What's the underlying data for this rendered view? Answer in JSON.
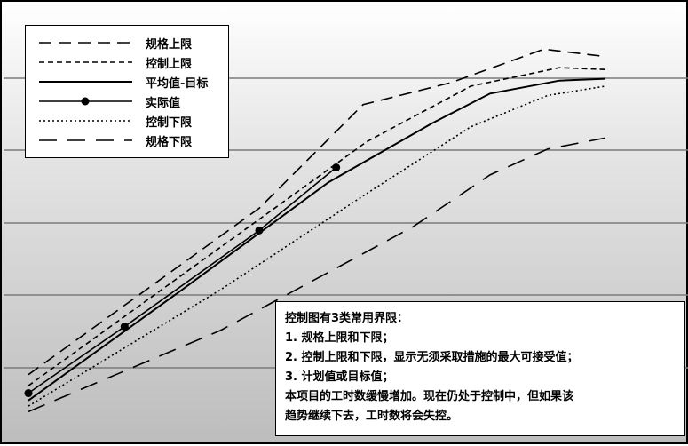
{
  "chart_data": {
    "type": "line",
    "title": "",
    "xlabel": "",
    "ylabel": "",
    "grid": true,
    "legend_position": "top-left",
    "series": [
      {
        "name": "规格上限",
        "style": "long-dash",
        "points": [
          [
            0,
            0.9
          ],
          [
            6,
            5.4
          ],
          [
            8.7,
            8.2
          ],
          [
            11,
            8.8
          ],
          [
            13.4,
            9.7
          ],
          [
            15,
            9.5
          ]
        ]
      },
      {
        "name": "控制上限",
        "style": "short-dash",
        "points": [
          [
            0,
            0.6
          ],
          [
            4.8,
            4.2
          ],
          [
            8.8,
            7.2
          ],
          [
            11.5,
            8.7
          ],
          [
            13.8,
            9.2
          ],
          [
            15,
            9.15
          ]
        ]
      },
      {
        "name": "平均值-目标",
        "style": "solid",
        "points": [
          [
            0,
            0.2
          ],
          [
            4,
            3.2
          ],
          [
            7.8,
            6.1
          ],
          [
            10.5,
            7.7
          ],
          [
            12,
            8.5
          ],
          [
            13.8,
            8.85
          ],
          [
            15,
            8.9
          ]
        ]
      },
      {
        "name": "实际值",
        "style": "solid-marker",
        "points": [
          [
            0,
            0.4
          ],
          [
            2.5,
            2.2
          ],
          [
            6,
            4.8
          ],
          [
            8,
            6.5
          ]
        ]
      },
      {
        "name": "控制下限",
        "style": "dotted",
        "points": [
          [
            0,
            0.05
          ],
          [
            5,
            3.2
          ],
          [
            8.8,
            5.8
          ],
          [
            11.5,
            7.6
          ],
          [
            13.5,
            8.45
          ],
          [
            15,
            8.7
          ]
        ]
      },
      {
        "name": "规格下限",
        "style": "long-dash-gap",
        "points": [
          [
            0,
            -0.1
          ],
          [
            5,
            2.1
          ],
          [
            10,
            4.9
          ],
          [
            12,
            6.3
          ],
          [
            13.5,
            7
          ],
          [
            15,
            7.3
          ]
        ]
      }
    ],
    "xlim": [
      0,
      15
    ],
    "ylim": [
      -0.5,
      10.5
    ]
  },
  "legend": [
    {
      "label": "规格上限",
      "style": "long-dash"
    },
    {
      "label": "控制上限",
      "style": "short-dash"
    },
    {
      "label": "平均值-目标",
      "style": "solid"
    },
    {
      "label": "实际值",
      "style": "solid-marker"
    },
    {
      "label": "控制下限",
      "style": "dotted"
    },
    {
      "label": "规格下限",
      "style": "long-dash-gap"
    }
  ],
  "annotation": {
    "lines": [
      "控制图有3类常用界限：",
      "1. 规格上限和下限；",
      "2. 控制上限和下限，显示无须采取措施的最大可接受值；",
      "3. 计划值或目标值；",
      "本项目的工时数缓慢增加。现在仍处于控制中，但如果该",
      "趋势继续下去，工时数将会失控。"
    ]
  },
  "colors": {
    "line": "#000000",
    "grid": "#7a7a7a",
    "box": "#ffffff"
  }
}
